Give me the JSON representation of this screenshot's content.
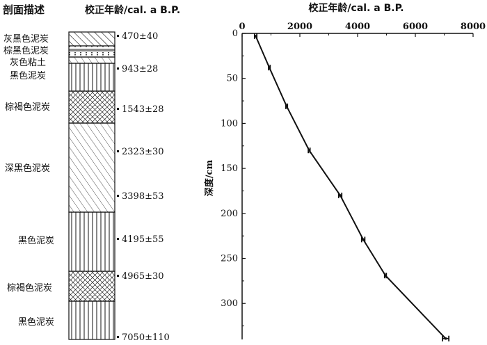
{
  "column": {
    "header_desc": "剖面描述",
    "header_age": "校正年龄/cal. a B.P.",
    "layers": [
      {
        "desc": "灰黑色泥炭",
        "pattern": "diag-bold"
      },
      {
        "desc": "棕黑色泥炭",
        "pattern": "dotted-band"
      },
      {
        "desc": "灰色粘土",
        "pattern": "diag-thin"
      },
      {
        "desc": "黑色泥炭",
        "pattern": "vertical"
      },
      {
        "desc": "棕褐色泥炭",
        "pattern": "crosshatch"
      },
      {
        "desc": "深黑色泥炭",
        "pattern": "diag-thin"
      },
      {
        "desc": "黑色泥炭",
        "pattern": "vertical"
      },
      {
        "desc": "棕褐色泥炭",
        "pattern": "crosshatch"
      },
      {
        "desc": "黑色泥炭",
        "pattern": "vertical"
      }
    ],
    "ages": [
      "470±40",
      "943±28",
      "1543±28",
      "2323±30",
      "3398±53",
      "4195±55",
      "4965±30",
      "7050±110"
    ]
  },
  "chart_data": {
    "type": "line",
    "title": "校正年龄/cal. a B.P.",
    "ylabel": "深度/cm",
    "xlim": [
      0,
      8000
    ],
    "ylim": [
      0,
      340
    ],
    "y_inverted": true,
    "x_axis_position": "top",
    "xticks": [
      "0",
      "2000",
      "4000",
      "6000",
      "8000"
    ],
    "yticks": [
      "0",
      "50",
      "100",
      "150",
      "200",
      "250",
      "300"
    ],
    "series": [
      {
        "points": [
          {
            "x": 470,
            "y": 3,
            "err": 40
          },
          {
            "x": 943,
            "y": 38,
            "err": 28
          },
          {
            "x": 1543,
            "y": 81,
            "err": 28
          },
          {
            "x": 2323,
            "y": 130,
            "err": 30
          },
          {
            "x": 3398,
            "y": 180,
            "err": 53
          },
          {
            "x": 4195,
            "y": 229,
            "err": 55
          },
          {
            "x": 4965,
            "y": 269,
            "err": 30
          },
          {
            "x": 7050,
            "y": 339,
            "err": 110
          }
        ]
      }
    ]
  }
}
